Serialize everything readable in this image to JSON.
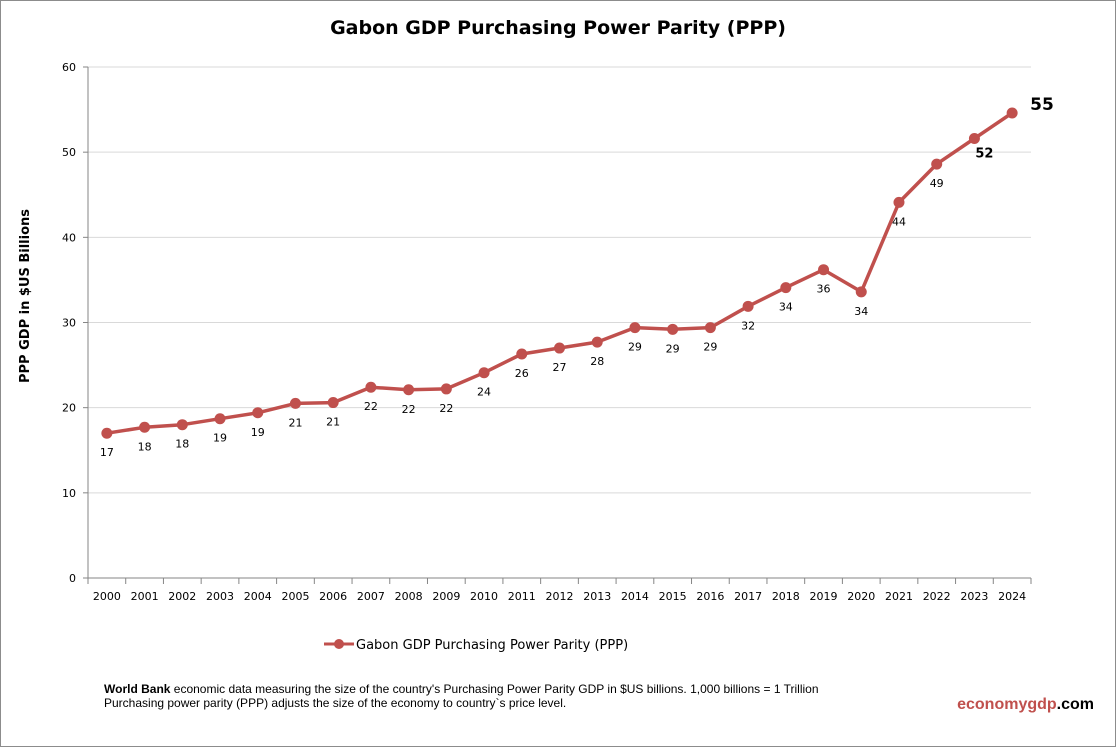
{
  "chart_data": {
    "type": "line",
    "title": "Gabon GDP Purchasing Power Parity (PPP)",
    "xlabel": "",
    "ylabel": "PPP GDP in $US Billions",
    "ylim": [
      0,
      60
    ],
    "yticks": [
      0,
      10,
      20,
      30,
      40,
      50,
      60
    ],
    "grid": true,
    "legend": "bottom",
    "color": "#c0504d",
    "categories": [
      "2000",
      "2001",
      "2002",
      "2003",
      "2004",
      "2005",
      "2006",
      "2007",
      "2008",
      "2009",
      "2010",
      "2011",
      "2012",
      "2013",
      "2014",
      "2015",
      "2016",
      "2017",
      "2018",
      "2019",
      "2020",
      "2021",
      "2022",
      "2023",
      "2024"
    ],
    "series": [
      {
        "name": "Gabon GDP Purchasing Power Parity (PPP)",
        "values": [
          17.0,
          17.7,
          18.0,
          18.7,
          19.4,
          20.5,
          20.6,
          22.4,
          22.1,
          22.2,
          24.1,
          26.3,
          27.0,
          27.7,
          29.4,
          29.2,
          29.4,
          31.9,
          34.1,
          36.2,
          33.6,
          44.1,
          48.6,
          51.6,
          54.6
        ],
        "labels": [
          "17",
          "18",
          "18",
          "19",
          "19",
          "21",
          "21",
          "22",
          "22",
          "22",
          "24",
          "26",
          "27",
          "28",
          "29",
          "29",
          "29",
          "32",
          "34",
          "36",
          "34",
          "44",
          "49",
          "52",
          "55"
        ]
      }
    ]
  },
  "footer": {
    "source_bold": "World Bank",
    "text1": " economic data  measuring the size of the country's Purchasing Power Parity GDP in $US billions. 1,000 billions = 1 Trillion",
    "text2": "Purchasing power parity (PPP) adjusts the size of the economy to country`s price level."
  },
  "brand": {
    "part1": "economygdp",
    "part2": ".com"
  }
}
